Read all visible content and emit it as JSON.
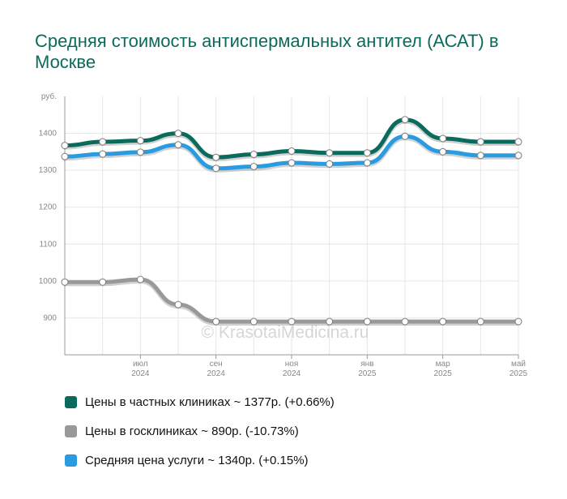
{
  "title": "Средняя стоимость антиспермальных антител (АСАТ) в Москве",
  "watermark": "© KrasotaiMedicina.ru",
  "legend": [
    {
      "label": "Цены в частных клиниках ~ 1377р. (+0.66%)",
      "color": "#0a6b5c"
    },
    {
      "label": "Цены в госклиниках ~ 890р. (-10.73%)",
      "color": "#999999"
    },
    {
      "label": "Средняя цена услуги ~ 1340р. (+0.15%)",
      "color": "#2b9be0"
    }
  ],
  "chart_data": {
    "type": "line",
    "title": "Средняя стоимость антиспермальных антител (АСАТ) в Москве",
    "ylabel": "руб.",
    "ylim": [
      800,
      1500
    ],
    "yticks": [
      900,
      1000,
      1100,
      1200,
      1300,
      1400
    ],
    "x": [
      "2024-05",
      "2024-06",
      "2024-07",
      "2024-08",
      "2024-09",
      "2024-10",
      "2024-11",
      "2024-12",
      "2025-01",
      "2025-02",
      "2025-03",
      "2025-04",
      "2025-05"
    ],
    "x_tick_labels": [
      {
        "x": "2024-07",
        "month": "июл",
        "year": "2024"
      },
      {
        "x": "2024-09",
        "month": "сен",
        "year": "2024"
      },
      {
        "x": "2024-11",
        "month": "ноя",
        "year": "2024"
      },
      {
        "x": "2025-01",
        "month": "янв",
        "year": "2025"
      },
      {
        "x": "2025-03",
        "month": "мар",
        "year": "2025"
      },
      {
        "x": "2025-05",
        "month": "май",
        "year": "2025"
      }
    ],
    "series": [
      {
        "name": "Цены в частных клиниках",
        "color": "#0a6b5c",
        "values": [
          1367,
          1377,
          1380,
          1400,
          1335,
          1343,
          1352,
          1347,
          1347,
          1437,
          1386,
          1377,
          1377
        ]
      },
      {
        "name": "Средняя цена услуги",
        "color": "#2b9be0",
        "values": [
          1337,
          1344,
          1349,
          1369,
          1305,
          1310,
          1320,
          1317,
          1320,
          1392,
          1350,
          1340,
          1340
        ]
      },
      {
        "name": "Цены в госклиниках",
        "color": "#999999",
        "values": [
          997,
          997,
          1004,
          936,
          890,
          890,
          890,
          890,
          890,
          890,
          890,
          890,
          890
        ]
      }
    ],
    "grid": true
  }
}
